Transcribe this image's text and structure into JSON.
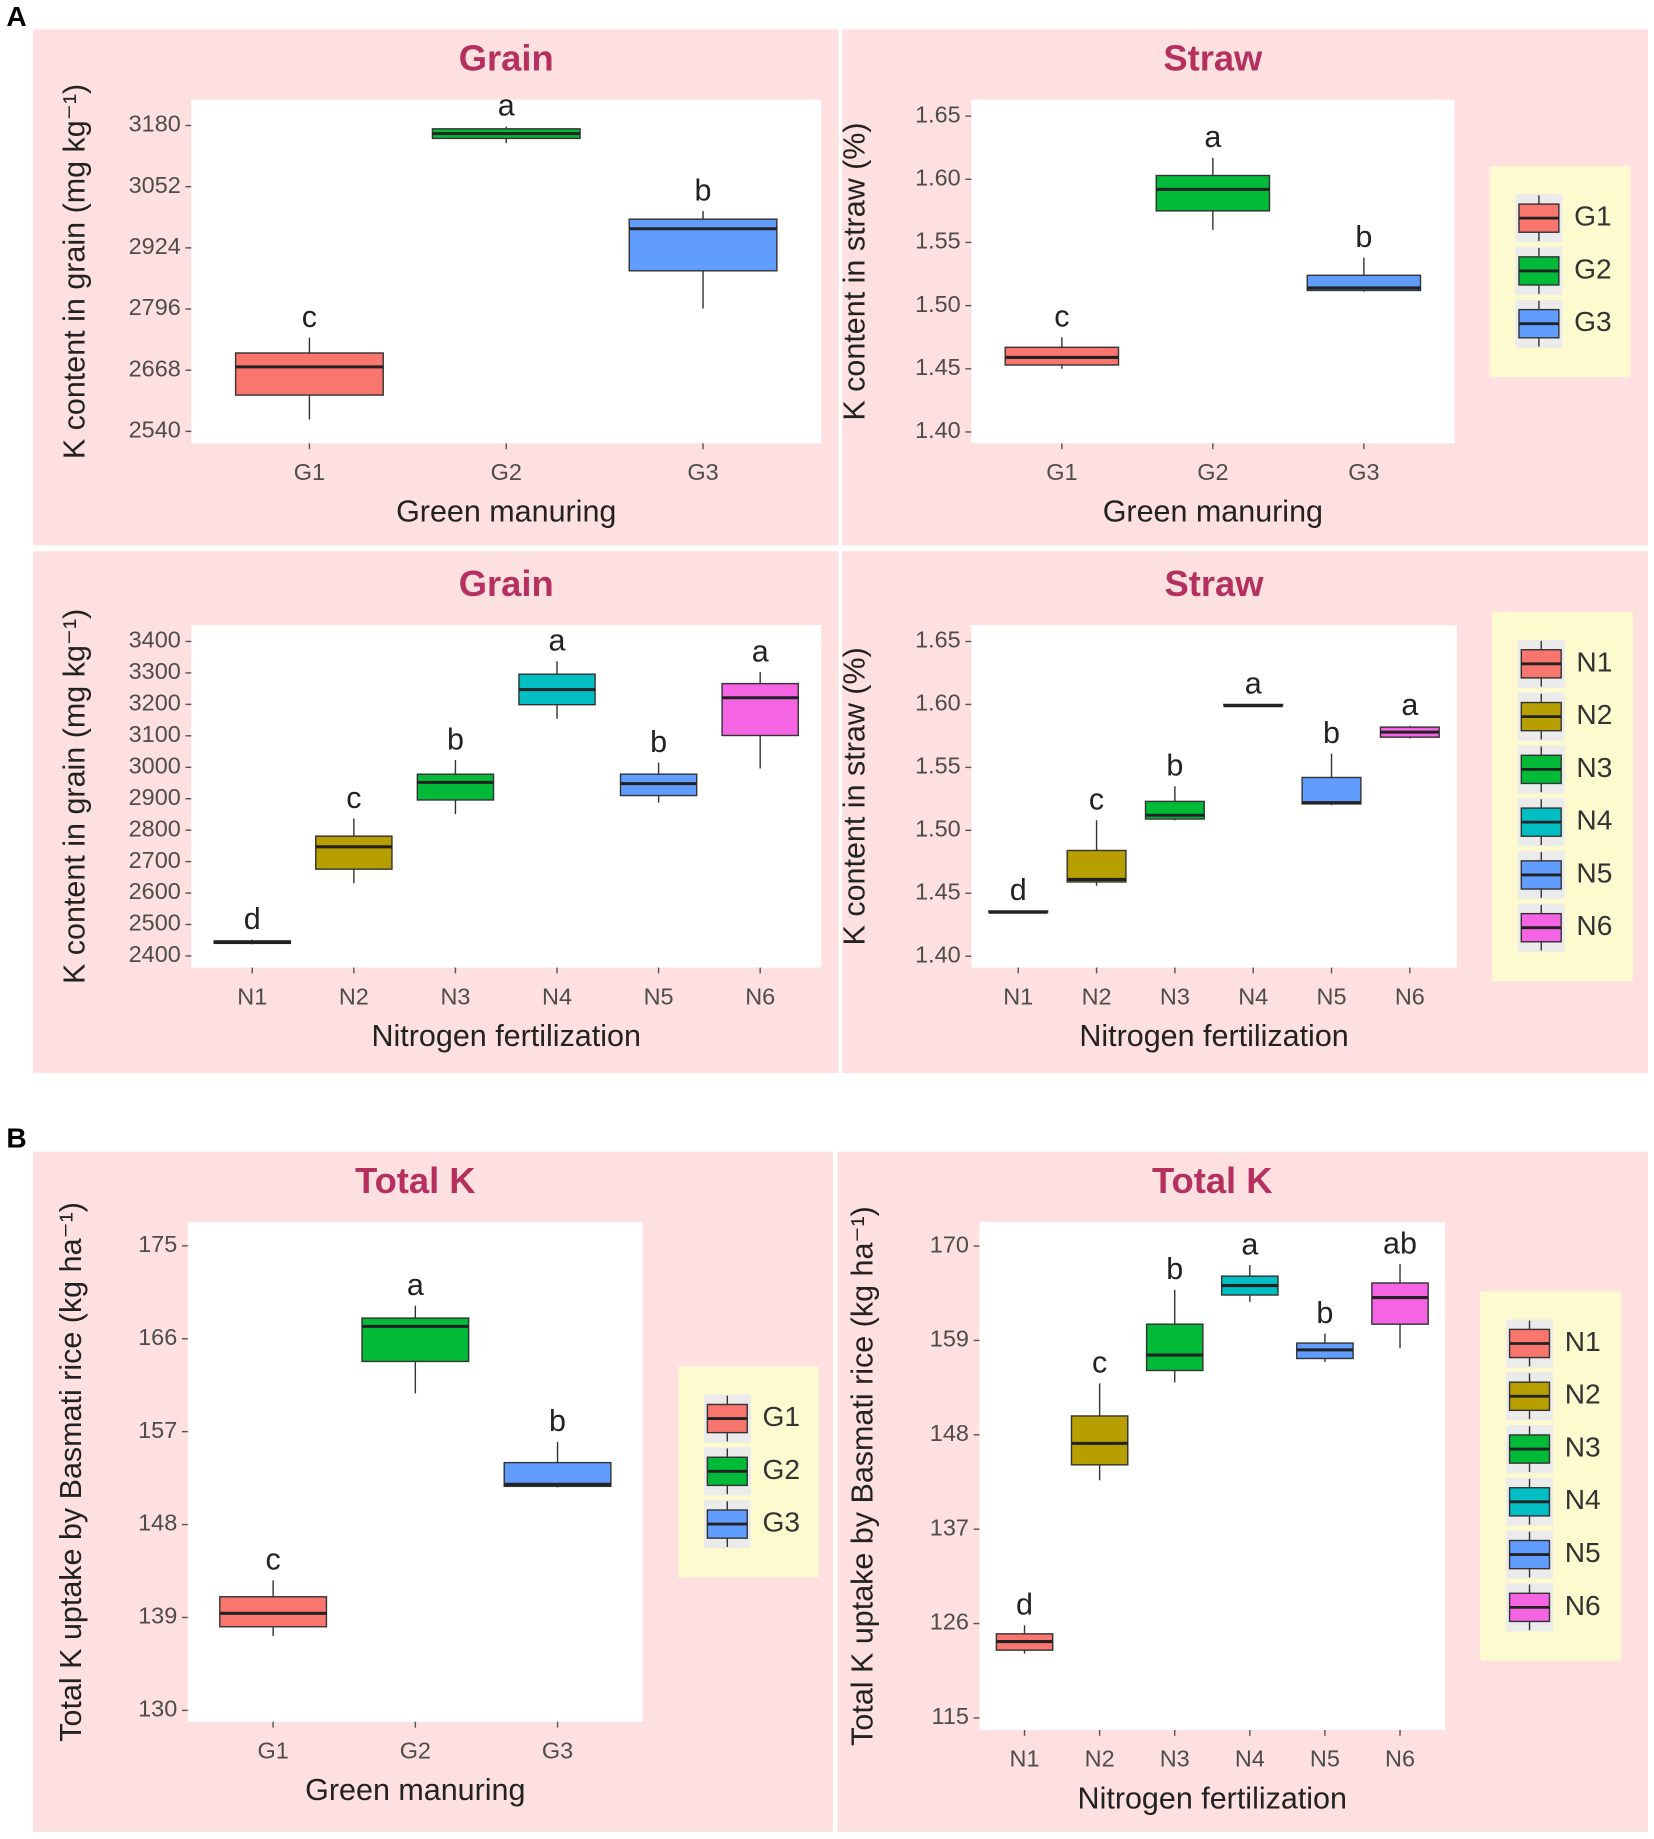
{
  "panel_labels": [
    "A",
    "B"
  ],
  "chart_data": [
    {
      "type": "box",
      "title": "Grain",
      "xlabel": "Green manuring",
      "ylabel": "K content in grain (mg kg⁻¹)",
      "categories": [
        "G1",
        "G2",
        "G3"
      ],
      "colors": [
        "#f8766d",
        "#00ba38",
        "#619cff"
      ],
      "legend": false,
      "ylim": [
        2515,
        3234
      ],
      "yticks": [
        2540,
        2668,
        2796,
        2924,
        3052,
        3180
      ],
      "min": [
        2565,
        3143,
        2797
      ],
      "q1": [
        2616,
        3153,
        2876
      ],
      "median": [
        2675,
        3163,
        2964
      ],
      "q3": [
        2704,
        3173,
        2984
      ],
      "max": [
        2736,
        3178,
        3001
      ],
      "letters": [
        "c",
        "a",
        "b"
      ]
    },
    {
      "type": "box",
      "title": "Straw",
      "xlabel": "Green manuring",
      "ylabel": "K content in straw  (%)",
      "categories": [
        "G1",
        "G2",
        "G3"
      ],
      "colors": [
        "#f8766d",
        "#00ba38",
        "#619cff"
      ],
      "legend": "right",
      "ylim": [
        1.391,
        1.663
      ],
      "yticks": [
        {
          "value": 1.4,
          "label": "1.40"
        },
        1.45,
        {
          "value": 1.5,
          "label": "1.50"
        },
        1.55,
        {
          "value": 1.6,
          "label": "1.60"
        },
        1.65
      ],
      "min": [
        1.45,
        1.56,
        1.511
      ],
      "q1": [
        1.453,
        1.575,
        1.512
      ],
      "median": [
        1.459,
        1.592,
        1.514
      ],
      "q3": [
        1.467,
        1.603,
        1.524
      ],
      "max": [
        1.475,
        1.617,
        1.538
      ],
      "letters": [
        "c",
        "a",
        "b"
      ]
    },
    {
      "type": "box",
      "title": "Grain",
      "xlabel": "Nitrogen fertilization",
      "ylabel": "K content in grain (mg kg⁻¹)",
      "categories": [
        "N1",
        "N2",
        "N3",
        "N4",
        "N5",
        "N6"
      ],
      "colors": [
        "#f8766d",
        "#b79f00",
        "#00ba38",
        "#00bfc4",
        "#619cff",
        "#f564e3"
      ],
      "legend": false,
      "ylim": [
        2363,
        3452
      ],
      "yticks": [
        2400,
        2500,
        2600,
        2700,
        2800,
        2900,
        3000,
        3100,
        3200,
        3300,
        3400
      ],
      "min": [
        2437,
        2631,
        2851,
        3154,
        2888,
        2996
      ],
      "q1": [
        2440,
        2676,
        2896,
        3199,
        2910,
        3101
      ],
      "median": [
        2443,
        2747,
        2952,
        3247,
        2948,
        3221
      ],
      "q3": [
        2448,
        2781,
        2978,
        3296,
        2978,
        3266
      ],
      "max": [
        2452,
        2837,
        3023,
        3337,
        3015,
        3303
      ],
      "letters": [
        "d",
        "c",
        "b",
        "a",
        "b",
        "a"
      ]
    },
    {
      "type": "box",
      "title": "Straw",
      "xlabel": "Nitrogen fertilization",
      "ylabel": "K content in straw  (%)",
      "categories": [
        "N1",
        "N2",
        "N3",
        "N4",
        "N5",
        "N6"
      ],
      "colors": [
        "#f8766d",
        "#b79f00",
        "#00ba38",
        "#00bfc4",
        "#619cff",
        "#f564e3"
      ],
      "legend": "right",
      "ylim": [
        1.391,
        1.663
      ],
      "yticks": [
        {
          "value": 1.4,
          "label": "1.40"
        },
        1.45,
        {
          "value": 1.5,
          "label": "1.50"
        },
        1.55,
        {
          "value": 1.6,
          "label": "1.60"
        },
        1.65
      ],
      "min": [
        1.434,
        1.456,
        1.508,
        1.598,
        1.52,
        1.573
      ],
      "q1": [
        1.435,
        1.459,
        1.509,
        1.599,
        1.521,
        1.574
      ],
      "median": [
        1.435,
        1.461,
        1.512,
        1.599,
        1.522,
        1.578
      ],
      "q3": [
        1.436,
        1.484,
        1.523,
        1.6,
        1.542,
        1.582
      ],
      "max": [
        1.436,
        1.508,
        1.535,
        1.6,
        1.561,
        1.583
      ],
      "letters": [
        "d",
        "c",
        "b",
        "a",
        "b",
        "a"
      ]
    },
    {
      "type": "box",
      "title": "Total K",
      "xlabel": "Green manuring",
      "ylabel": "Total K uptake by Basmati rice (kg ha⁻¹)",
      "categories": [
        "G1",
        "G2",
        "G3"
      ],
      "colors": [
        "#f8766d",
        "#00ba38",
        "#619cff"
      ],
      "legend": "right",
      "ylim": [
        128.9,
        177.3
      ],
      "yticks": [
        130,
        139,
        148,
        157,
        166,
        175
      ],
      "min": [
        137.2,
        160.7,
        151.6
      ],
      "q1": [
        138.1,
        163.8,
        151.7
      ],
      "median": [
        139.4,
        167.2,
        151.9
      ],
      "q3": [
        141.0,
        168.0,
        154.0
      ],
      "max": [
        142.6,
        169.2,
        156.0
      ],
      "letters": [
        "c",
        "a",
        "b"
      ]
    },
    {
      "type": "box",
      "title": "Total K",
      "xlabel": "Nitrogen fertilization",
      "ylabel": "Total K uptake by Basmati rice (kg ha⁻¹)",
      "categories": [
        "N1",
        "N2",
        "N3",
        "N4",
        "N5",
        "N6"
      ],
      "colors": [
        "#f8766d",
        "#b79f00",
        "#00ba38",
        "#00bfc4",
        "#619cff",
        "#f564e3"
      ],
      "legend": "right",
      "ylim": [
        113.6,
        172.8
      ],
      "yticks": [
        115,
        126,
        137,
        148,
        159,
        170
      ],
      "min": [
        122.5,
        142.7,
        154.1,
        163.5,
        156.5,
        158.1
      ],
      "q1": [
        122.9,
        144.5,
        155.5,
        164.3,
        156.9,
        160.9
      ],
      "median": [
        123.9,
        147.0,
        157.3,
        165.4,
        157.9,
        164.0
      ],
      "q3": [
        124.8,
        150.2,
        160.9,
        166.5,
        158.7,
        165.7
      ],
      "max": [
        125.8,
        154.0,
        164.9,
        167.8,
        159.8,
        167.9
      ],
      "letters": [
        "d",
        "c",
        "b",
        "a",
        "b",
        "ab"
      ]
    }
  ]
}
